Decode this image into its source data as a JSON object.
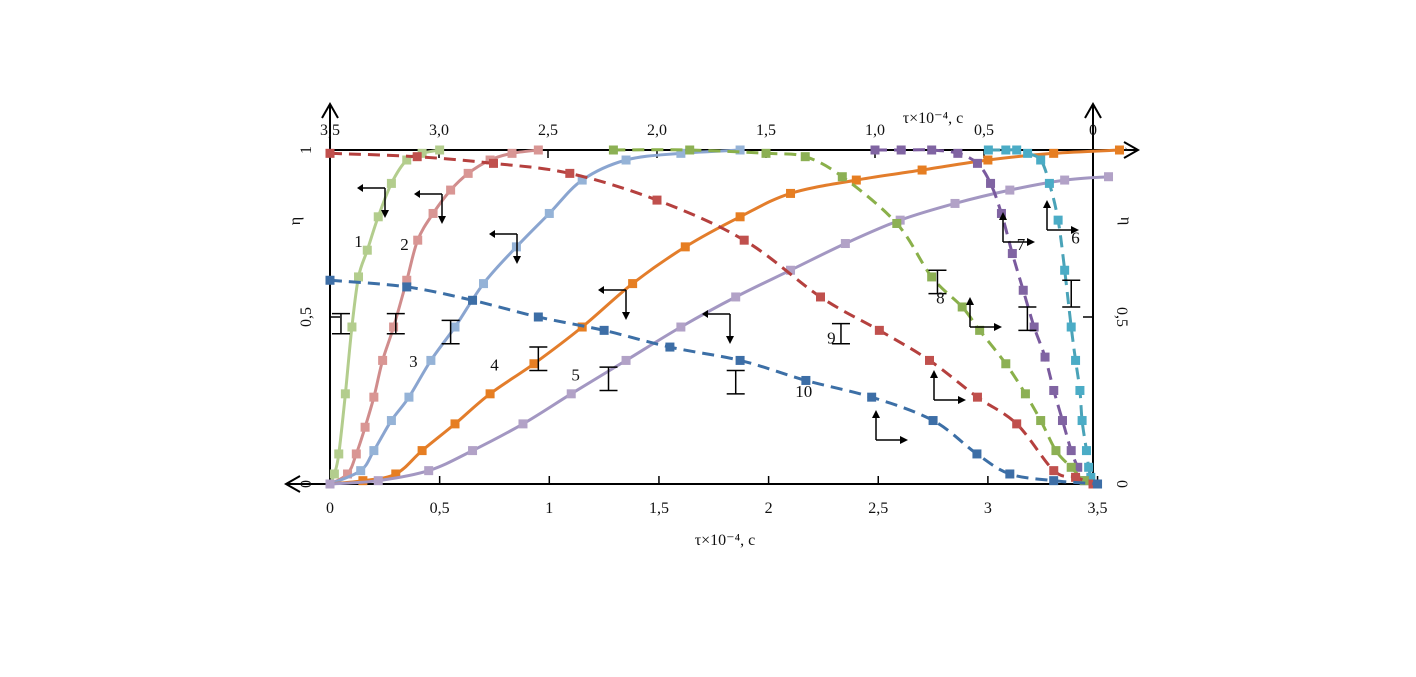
{
  "chart_data": {
    "type": "line",
    "title": "",
    "xlabel_bottom": "τ×10⁻⁴, с",
    "xlabel_top": "τ×10⁻⁴, с",
    "ylabel_left": "η",
    "ylabel_right": "η",
    "x_bottom_range": [
      0,
      3.5
    ],
    "x_top_range": [
      3.5,
      0
    ],
    "y_range": [
      0,
      1
    ],
    "x_bottom_ticks": [
      "0",
      "0,5",
      "1",
      "1,5",
      "2",
      "2,5",
      "3",
      "3,5"
    ],
    "x_top_ticks": [
      "3,5",
      "3,0",
      "2,5",
      "2,0",
      "1,5",
      "1,0",
      "0,5",
      "0"
    ],
    "y_left_ticks": [
      "0",
      "0,5",
      "1"
    ],
    "y_right_ticks": [
      "0",
      "0,5",
      "1"
    ],
    "grid": false,
    "series": [
      {
        "label": "1",
        "color": "#b3cd8d",
        "dash": "solid",
        "axis": "bottom",
        "marker_color": "#b3cd8d",
        "x": [
          0.0,
          0.02,
          0.04,
          0.07,
          0.1,
          0.13,
          0.17,
          0.22,
          0.28,
          0.35,
          0.42,
          0.5
        ],
        "y": [
          0.0,
          0.03,
          0.09,
          0.27,
          0.47,
          0.62,
          0.7,
          0.8,
          0.9,
          0.97,
          0.99,
          1.0
        ]
      },
      {
        "label": "2",
        "color": "#d08c8c",
        "dash": "solid",
        "axis": "bottom",
        "marker_color": "#d99694",
        "x": [
          0.0,
          0.08,
          0.12,
          0.16,
          0.2,
          0.24,
          0.29,
          0.35,
          0.4,
          0.47,
          0.55,
          0.63,
          0.73,
          0.83,
          0.95
        ],
        "y": [
          0.0,
          0.03,
          0.09,
          0.17,
          0.26,
          0.37,
          0.47,
          0.61,
          0.73,
          0.81,
          0.88,
          0.93,
          0.97,
          0.99,
          1.0
        ]
      },
      {
        "label": "3",
        "color": "#8aa5d0",
        "dash": "solid",
        "axis": "bottom",
        "marker_color": "#95b3d7",
        "x": [
          0.0,
          0.14,
          0.2,
          0.28,
          0.36,
          0.46,
          0.57,
          0.7,
          0.85,
          1.0,
          1.15,
          1.35,
          1.6,
          1.87
        ],
        "y": [
          0.0,
          0.04,
          0.1,
          0.19,
          0.26,
          0.37,
          0.47,
          0.6,
          0.71,
          0.81,
          0.91,
          0.97,
          0.99,
          1.0
        ]
      },
      {
        "label": "4",
        "color": "#e37d2b",
        "dash": "solid",
        "axis": "bottom",
        "marker_color": "#e67e22",
        "x": [
          0.0,
          0.15,
          0.3,
          0.42,
          0.57,
          0.73,
          0.93,
          1.15,
          1.38,
          1.62,
          1.87,
          2.1,
          2.4,
          2.7,
          3.0,
          3.3,
          3.6
        ],
        "y": [
          0.0,
          0.01,
          0.03,
          0.1,
          0.18,
          0.27,
          0.36,
          0.47,
          0.6,
          0.71,
          0.8,
          0.87,
          0.91,
          0.94,
          0.97,
          0.99,
          1.0
        ]
      },
      {
        "label": "5",
        "color": "#a397c2",
        "dash": "solid",
        "axis": "bottom",
        "marker_color": "#b2a2c7",
        "x": [
          0.0,
          0.22,
          0.45,
          0.65,
          0.88,
          1.1,
          1.35,
          1.6,
          1.85,
          2.1,
          2.35,
          2.6,
          2.85,
          3.1,
          3.35,
          3.55
        ],
        "y": [
          0.0,
          0.01,
          0.04,
          0.1,
          0.18,
          0.27,
          0.37,
          0.47,
          0.56,
          0.64,
          0.72,
          0.79,
          0.84,
          0.88,
          0.91,
          0.92
        ]
      },
      {
        "label": "6",
        "color": "#4aa3b8",
        "dash": "dashed",
        "axis": "top",
        "marker_color": "#4bacc6",
        "x": [
          0.48,
          0.4,
          0.35,
          0.3,
          0.24,
          0.2,
          0.16,
          0.13,
          0.1,
          0.08,
          0.06,
          0.05,
          0.03,
          0.02,
          0.01,
          0.0
        ],
        "y": [
          1.0,
          1.0,
          1.0,
          0.99,
          0.97,
          0.9,
          0.79,
          0.64,
          0.47,
          0.37,
          0.28,
          0.19,
          0.1,
          0.05,
          0.02,
          0.0
        ]
      },
      {
        "label": "7",
        "color": "#7a5a9e",
        "dash": "dashed",
        "axis": "top",
        "marker_color": "#8064a2",
        "x": [
          1.0,
          0.88,
          0.74,
          0.62,
          0.53,
          0.47,
          0.42,
          0.37,
          0.32,
          0.27,
          0.22,
          0.18,
          0.14,
          0.1,
          0.07,
          0.04,
          0.0
        ],
        "y": [
          1.0,
          1.0,
          1.0,
          0.99,
          0.96,
          0.9,
          0.81,
          0.69,
          0.58,
          0.47,
          0.38,
          0.28,
          0.19,
          0.1,
          0.05,
          0.01,
          0.0
        ]
      },
      {
        "label": "8",
        "color": "#8ab04a",
        "dash": "dashed",
        "axis": "top",
        "marker_color": "#8cb054",
        "x": [
          2.2,
          1.85,
          1.5,
          1.32,
          1.15,
          0.9,
          0.74,
          0.6,
          0.52,
          0.4,
          0.31,
          0.24,
          0.17,
          0.1,
          0.04,
          0.0
        ],
        "y": [
          1.0,
          1.0,
          0.99,
          0.98,
          0.92,
          0.78,
          0.62,
          0.53,
          0.46,
          0.36,
          0.27,
          0.19,
          0.1,
          0.05,
          0.01,
          0.0
        ]
      },
      {
        "label": "9",
        "color": "#b5403e",
        "dash": "dashed",
        "axis": "top",
        "marker_color": "#c0504d",
        "x": [
          3.5,
          3.1,
          2.75,
          2.4,
          2.0,
          1.6,
          1.25,
          0.98,
          0.75,
          0.53,
          0.35,
          0.18,
          0.08,
          0.0
        ],
        "y": [
          0.99,
          0.98,
          0.96,
          0.93,
          0.85,
          0.73,
          0.56,
          0.46,
          0.37,
          0.26,
          0.18,
          0.04,
          0.02,
          0.0
        ]
      },
      {
        "label": "10",
        "color": "#3c6fa6",
        "dash": "dashed",
        "axis": "bottom",
        "marker_color": "#3d6ea6",
        "x": [
          0.0,
          0.35,
          0.65,
          0.95,
          1.25,
          1.55,
          1.87,
          2.17,
          2.47,
          2.75,
          2.95,
          3.1,
          3.3,
          3.5
        ],
        "y": [
          0.61,
          0.59,
          0.55,
          0.5,
          0.46,
          0.41,
          0.37,
          0.31,
          0.26,
          0.19,
          0.09,
          0.03,
          0.01,
          0.0
        ]
      }
    ],
    "error_bars": [
      {
        "x": 0.05,
        "low": 0.45,
        "high": 0.51
      },
      {
        "x": 0.3,
        "low": 0.45,
        "high": 0.51
      },
      {
        "x": 0.55,
        "low": 0.42,
        "high": 0.49
      },
      {
        "x": 0.95,
        "low": 0.34,
        "high": 0.41
      },
      {
        "x": 1.27,
        "low": 0.28,
        "high": 0.35
      },
      {
        "x": 1.85,
        "low": 0.27,
        "high": 0.34
      },
      {
        "x": 2.33,
        "low": 0.42,
        "high": 0.48
      },
      {
        "x": 2.77,
        "low": 0.57,
        "high": 0.64
      },
      {
        "x": 3.18,
        "low": 0.46,
        "high": 0.53
      },
      {
        "x": 3.38,
        "low": 0.53,
        "high": 0.61
      }
    ],
    "direction_markers": [
      {
        "label": "1",
        "dir": "top",
        "x": 0.25,
        "y": 0.88
      },
      {
        "label": "2",
        "dir": "top",
        "x": 0.52,
        "y": 0.86
      },
      {
        "label": "3",
        "dir": "top",
        "x": 0.87,
        "y": 0.75
      },
      {
        "label": "4",
        "dir": "top",
        "x": 1.37,
        "y": 0.58
      },
      {
        "label": "5",
        "dir": "top",
        "x": 1.84,
        "y": 0.51
      },
      {
        "label": "6",
        "dir": "top",
        "x": 0.21,
        "y": 0.77
      },
      {
        "label": "7",
        "dir": "top",
        "x": 0.39,
        "y": 0.74
      },
      {
        "label": "8",
        "dir": "top",
        "x": 0.8,
        "y": 0.43
      },
      {
        "label": "9",
        "dir": "top",
        "x": 1.13,
        "y": 0.26
      },
      {
        "label": "10",
        "dir": "top",
        "x": 1.65,
        "y": 0.14
      }
    ],
    "curve_labels": [
      {
        "text": "1",
        "x": 0.13,
        "y": 0.71
      },
      {
        "text": "2",
        "x": 0.34,
        "y": 0.7
      },
      {
        "text": "3",
        "x": 0.38,
        "y": 0.35
      },
      {
        "text": "4",
        "x": 0.75,
        "y": 0.34
      },
      {
        "text": "5",
        "x": 1.12,
        "y": 0.31
      },
      {
        "text": "6",
        "x": 0.08,
        "y": 0.72,
        "axis": "top"
      },
      {
        "text": "7",
        "x": 0.33,
        "y": 0.7,
        "axis": "top"
      },
      {
        "text": "8",
        "x": 0.7,
        "y": 0.54,
        "axis": "top"
      },
      {
        "text": "9",
        "x": 1.2,
        "y": 0.42,
        "axis": "top"
      },
      {
        "text": "10",
        "x": 2.16,
        "y": 0.26
      }
    ]
  }
}
